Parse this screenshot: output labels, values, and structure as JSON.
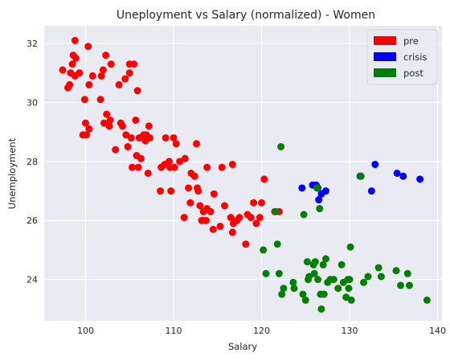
{
  "chart_data": {
    "type": "scatter",
    "title": "Uneployment vs Salary (normalized) - Women",
    "xlabel": "Salary",
    "ylabel": "Unemployment",
    "xlim": [
      95.3,
      140.5
    ],
    "ylim": [
      22.6,
      32.6
    ],
    "xticks": [
      100,
      110,
      120,
      130,
      140
    ],
    "yticks": [
      24,
      26,
      28,
      30,
      32
    ],
    "grid": true,
    "legend_position": "top-right",
    "series": [
      {
        "name": "pre",
        "color": "#ff0000",
        "points": [
          [
            97.4,
            31.1
          ],
          [
            98.0,
            30.5
          ],
          [
            98.2,
            30.6
          ],
          [
            98.3,
            31.0
          ],
          [
            98.5,
            31.3
          ],
          [
            98.6,
            31.6
          ],
          [
            98.8,
            32.1
          ],
          [
            98.9,
            31.5
          ],
          [
            98.8,
            30.9
          ],
          [
            99.3,
            31.0
          ],
          [
            99.7,
            28.9
          ],
          [
            99.9,
            30.1
          ],
          [
            100.0,
            29.3
          ],
          [
            100.1,
            28.9
          ],
          [
            100.3,
            31.9
          ],
          [
            100.4,
            29.1
          ],
          [
            100.4,
            30.6
          ],
          [
            100.8,
            30.9
          ],
          [
            101.8,
            30.9
          ],
          [
            101.7,
            30.1
          ],
          [
            102.0,
            31.1
          ],
          [
            102.1,
            29.3
          ],
          [
            102.3,
            31.6
          ],
          [
            102.4,
            29.6
          ],
          [
            102.7,
            29.2
          ],
          [
            102.8,
            29.4
          ],
          [
            102.9,
            31.3
          ],
          [
            103.4,
            28.4
          ],
          [
            103.8,
            30.6
          ],
          [
            104.0,
            29.3
          ],
          [
            104.2,
            29.2
          ],
          [
            104.5,
            30.8
          ],
          [
            104.6,
            28.9
          ],
          [
            104.8,
            28.5
          ],
          [
            105.0,
            31.3
          ],
          [
            105.0,
            31.0
          ],
          [
            105.2,
            28.8
          ],
          [
            105.3,
            27.8
          ],
          [
            105.5,
            31.3
          ],
          [
            105.7,
            29.4
          ],
          [
            105.8,
            28.2
          ],
          [
            105.9,
            30.4
          ],
          [
            106.0,
            27.8
          ],
          [
            106.1,
            28.8
          ],
          [
            106.3,
            28.1
          ],
          [
            106.6,
            28.9
          ],
          [
            106.8,
            28.7
          ],
          [
            106.9,
            28.9
          ],
          [
            107.1,
            27.6
          ],
          [
            107.2,
            29.2
          ],
          [
            107.3,
            28.8
          ],
          [
            108.5,
            27.0
          ],
          [
            108.6,
            27.8
          ],
          [
            109.0,
            27.9
          ],
          [
            109.1,
            28.8
          ],
          [
            109.5,
            28.0
          ],
          [
            109.6,
            27.8
          ],
          [
            109.7,
            27.0
          ],
          [
            110.0,
            28.8
          ],
          [
            110.1,
            27.8
          ],
          [
            110.3,
            28.6
          ],
          [
            110.7,
            28.0
          ],
          [
            111.2,
            26.1
          ],
          [
            111.3,
            28.1
          ],
          [
            111.7,
            27.1
          ],
          [
            111.9,
            26.6
          ],
          [
            112.0,
            27.6
          ],
          [
            112.4,
            27.5
          ],
          [
            112.6,
            28.6
          ],
          [
            112.7,
            27.1
          ],
          [
            112.8,
            27.0
          ],
          [
            113.0,
            26.5
          ],
          [
            113.2,
            26.0
          ],
          [
            113.3,
            26.0
          ],
          [
            113.4,
            26.3
          ],
          [
            113.7,
            26.0
          ],
          [
            113.8,
            27.8
          ],
          [
            113.8,
            26.4
          ],
          [
            114.2,
            26.3
          ],
          [
            114.5,
            25.7
          ],
          [
            114.6,
            26.9
          ],
          [
            115.3,
            25.8
          ],
          [
            115.5,
            27.8
          ],
          [
            115.8,
            26.5
          ],
          [
            116.5,
            26.1
          ],
          [
            116.7,
            27.9
          ],
          [
            116.7,
            25.6
          ],
          [
            116.8,
            25.9
          ],
          [
            117.2,
            26.0
          ],
          [
            117.5,
            26.1
          ],
          [
            118.2,
            25.2
          ],
          [
            118.4,
            26.2
          ],
          [
            118.8,
            26.1
          ],
          [
            119.1,
            26.6
          ],
          [
            119.4,
            25.9
          ],
          [
            119.8,
            26.1
          ],
          [
            120.0,
            26.6
          ],
          [
            120.3,
            27.4
          ],
          [
            121.5,
            26.3
          ],
          [
            122.0,
            26.3
          ]
        ]
      },
      {
        "name": "crisis",
        "color": "#0000ff",
        "points": [
          [
            124.6,
            27.1
          ],
          [
            125.8,
            27.2
          ],
          [
            126.2,
            27.2
          ],
          [
            126.4,
            27.1
          ],
          [
            126.5,
            26.7
          ],
          [
            126.8,
            26.9
          ],
          [
            127.3,
            27.0
          ],
          [
            131.2,
            27.5
          ],
          [
            132.5,
            27.0
          ],
          [
            132.9,
            27.9
          ],
          [
            135.4,
            27.6
          ],
          [
            136.1,
            27.5
          ],
          [
            138.0,
            27.4
          ]
        ]
      },
      {
        "name": "post",
        "color": "#008000",
        "points": [
          [
            120.2,
            25.0
          ],
          [
            120.5,
            24.2
          ],
          [
            121.6,
            26.3
          ],
          [
            121.8,
            25.2
          ],
          [
            122.0,
            24.2
          ],
          [
            122.2,
            28.5
          ],
          [
            122.3,
            23.5
          ],
          [
            122.5,
            23.7
          ],
          [
            123.6,
            23.9
          ],
          [
            123.7,
            23.7
          ],
          [
            124.7,
            23.5
          ],
          [
            124.8,
            26.2
          ],
          [
            125.0,
            23.3
          ],
          [
            125.2,
            24.6
          ],
          [
            125.3,
            24.0
          ],
          [
            125.4,
            24.1
          ],
          [
            125.9,
            24.5
          ],
          [
            126.0,
            24.2
          ],
          [
            126.1,
            24.6
          ],
          [
            126.3,
            27.1
          ],
          [
            126.4,
            24.0
          ],
          [
            126.6,
            26.4
          ],
          [
            126.7,
            23.5
          ],
          [
            126.8,
            23.0
          ],
          [
            127.0,
            24.5
          ],
          [
            127.1,
            23.5
          ],
          [
            127.3,
            24.7
          ],
          [
            127.5,
            23.9
          ],
          [
            127.8,
            24.0
          ],
          [
            128.2,
            24.0
          ],
          [
            128.7,
            23.7
          ],
          [
            129.1,
            24.5
          ],
          [
            129.3,
            23.9
          ],
          [
            129.6,
            23.4
          ],
          [
            129.8,
            24.0
          ],
          [
            129.9,
            23.7
          ],
          [
            130.0,
            24.0
          ],
          [
            130.1,
            25.1
          ],
          [
            130.2,
            23.3
          ],
          [
            131.3,
            27.5
          ],
          [
            131.6,
            23.9
          ],
          [
            132.1,
            24.1
          ],
          [
            133.3,
            24.4
          ],
          [
            133.6,
            24.1
          ],
          [
            135.3,
            24.3
          ],
          [
            135.8,
            23.8
          ],
          [
            136.6,
            24.2
          ],
          [
            136.8,
            23.8
          ],
          [
            138.8,
            23.3
          ]
        ]
      }
    ]
  }
}
